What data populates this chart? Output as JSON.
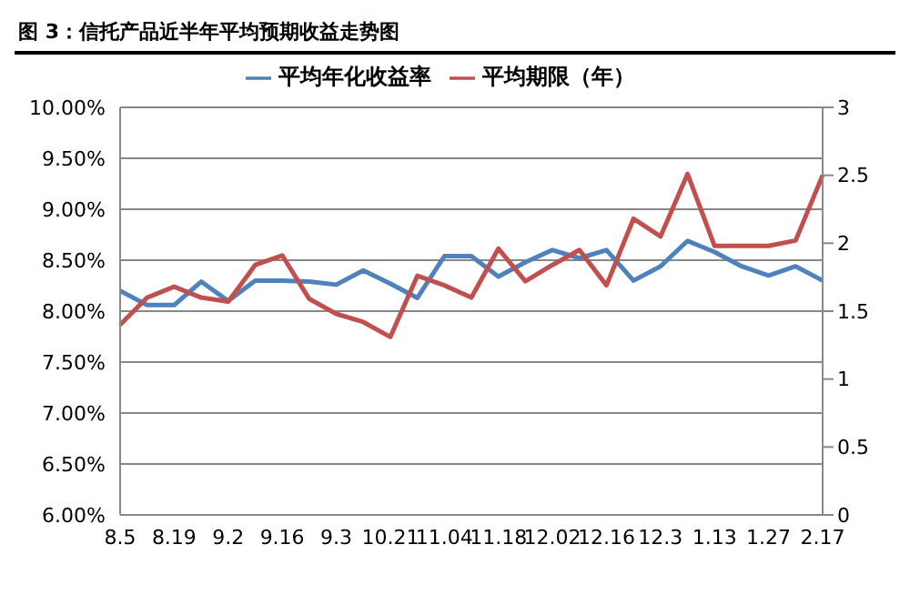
{
  "chart_data": {
    "type": "line",
    "title": "图 3：信托产品近半年平均预期收益走势图",
    "categories": [
      "8.5",
      null,
      "8.19",
      null,
      "9.2",
      null,
      "9.16",
      null,
      "9.3",
      null,
      "10.21",
      null,
      "11.04",
      null,
      "11.18",
      null,
      "12.02",
      null,
      "12.16",
      null,
      "12.3",
      null,
      "1.13",
      null,
      "1.27",
      null,
      "2.17"
    ],
    "series": [
      {
        "name": "平均年化收益率",
        "color": "#4f81bd",
        "values": [
          8.2,
          8.06,
          8.06,
          8.29,
          8.1,
          8.3,
          8.3,
          8.29,
          8.26,
          8.4,
          8.27,
          8.13,
          8.54,
          8.54,
          8.34,
          8.48,
          8.6,
          8.52,
          8.6,
          8.3,
          8.44,
          8.69,
          8.58,
          8.44,
          8.35,
          8.44,
          8.3
        ]
      },
      {
        "name": "平均期限（年）",
        "color": "#c0504d",
        "axis": "y2",
        "values": [
          1.4,
          1.6,
          1.68,
          1.6,
          1.57,
          1.84,
          1.91,
          1.59,
          1.48,
          1.42,
          1.31,
          1.76,
          1.69,
          1.6,
          1.96,
          1.72,
          1.84,
          1.95,
          1.69,
          2.18,
          2.05,
          2.51,
          1.98,
          1.98,
          1.98,
          2.02,
          2.5
        ]
      }
    ],
    "ylim": [
      6,
      10
    ],
    "yticks": [
      {
        "value": 6,
        "label": "6.00%"
      },
      {
        "value": 6.5,
        "label": "6.50%"
      },
      {
        "value": 7,
        "label": "7.00%"
      },
      {
        "value": 7.5,
        "label": "7.50%"
      },
      {
        "value": 8,
        "label": "8.00%"
      },
      {
        "value": 8.5,
        "label": "8.50%"
      },
      {
        "value": 9,
        "label": "9.00%"
      },
      {
        "value": 9.5,
        "label": "9.50%"
      },
      {
        "value": 10,
        "label": "10.00%"
      }
    ],
    "y2lim": [
      0,
      3
    ],
    "y2ticks": [
      0,
      0.5,
      1,
      1.5,
      2,
      2.5,
      3
    ],
    "grid": "y",
    "legend": "top",
    "marker": "none",
    "line_style": "solid"
  }
}
